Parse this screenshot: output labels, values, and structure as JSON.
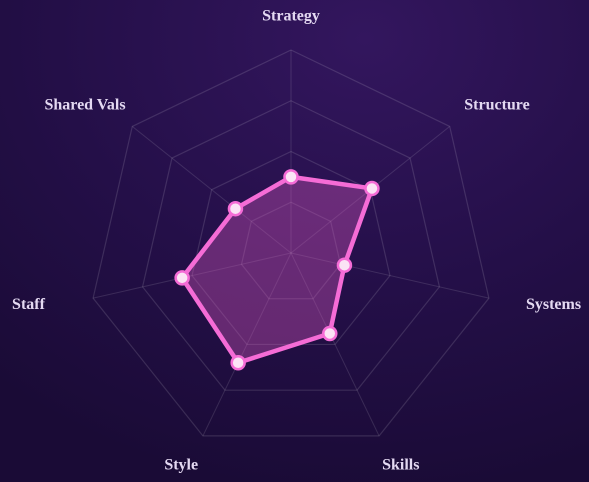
{
  "chart_data": {
    "type": "radar",
    "categories": [
      "Strategy",
      "Structure",
      "Systems",
      "Skills",
      "Style",
      "Staff",
      "Shared Vals"
    ],
    "values": [
      37.5,
      51,
      27,
      44,
      60,
      55,
      35
    ],
    "color": "#f56cd6",
    "ylim": [
      0,
      100
    ],
    "yticks": [
      25,
      50,
      75,
      100
    ],
    "grid": true
  }
}
